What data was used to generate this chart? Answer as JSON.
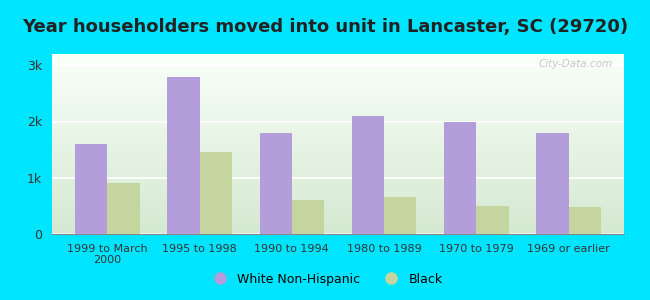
{
  "categories": [
    "1999 to March\n2000",
    "1995 to 1998",
    "1990 to 1994",
    "1980 to 1989",
    "1970 to 1979",
    "1969 or earlier"
  ],
  "white_values": [
    1600,
    2800,
    1800,
    2100,
    2000,
    1800
  ],
  "black_values": [
    900,
    1450,
    600,
    650,
    500,
    480
  ],
  "white_color": "#b39ddb",
  "black_color": "#c5d5a0",
  "title": "Year householders moved into unit in Lancaster, SC (29720)",
  "title_fontsize": 13,
  "ylim": [
    0,
    3200
  ],
  "yticks": [
    0,
    1000,
    2000,
    3000
  ],
  "ytick_labels": [
    "0",
    "1k",
    "2k",
    "3k"
  ],
  "background_outer": "#00e5ff",
  "grid_color": "#ffffff",
  "legend_white": "White Non-Hispanic",
  "legend_black": "Black",
  "bar_width": 0.35
}
